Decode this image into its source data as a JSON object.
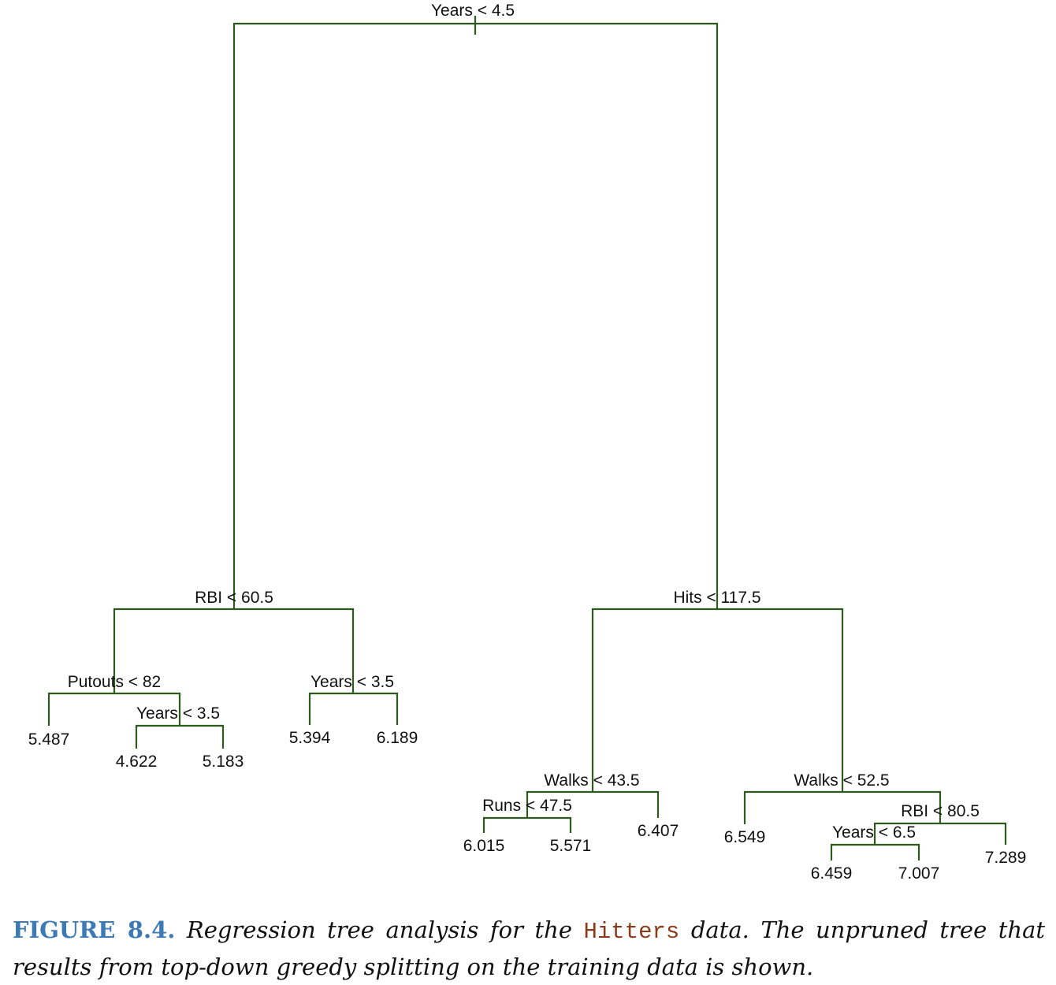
{
  "colors": {
    "edge": "#2f5a1f",
    "figure_tag": "#3c7ab5",
    "code_word": "#8b3a1a",
    "text": "#111111"
  },
  "tree": {
    "splits": {
      "root": "Years < 4.5",
      "rbi_60": "RBI < 60.5",
      "hits_117": "Hits < 117.5",
      "putouts_82": "Putouts < 82",
      "years_35a": "Years < 3.5",
      "years_35b": "Years < 3.5",
      "walks_435": "Walks < 43.5",
      "walks_525": "Walks < 52.5",
      "runs_475": "Runs < 47.5",
      "rbi_805": "RBI < 80.5",
      "years_65": "Years < 6.5"
    },
    "leaves": {
      "l1": "5.487",
      "l2": "4.622",
      "l3": "5.183",
      "l4": "5.394",
      "l5": "6.189",
      "l6": "6.015",
      "l7": "5.571",
      "l8": "6.407",
      "l9": "6.549",
      "l10": "6.459",
      "l11": "7.007",
      "l12": "7.289"
    }
  },
  "caption": {
    "tag": "FIGURE 8.4.",
    "text_before": " Regression tree analysis for the ",
    "code": "Hitters",
    "text_after": " data. The unpruned tree that results from top-down greedy splitting on the training data is shown."
  }
}
